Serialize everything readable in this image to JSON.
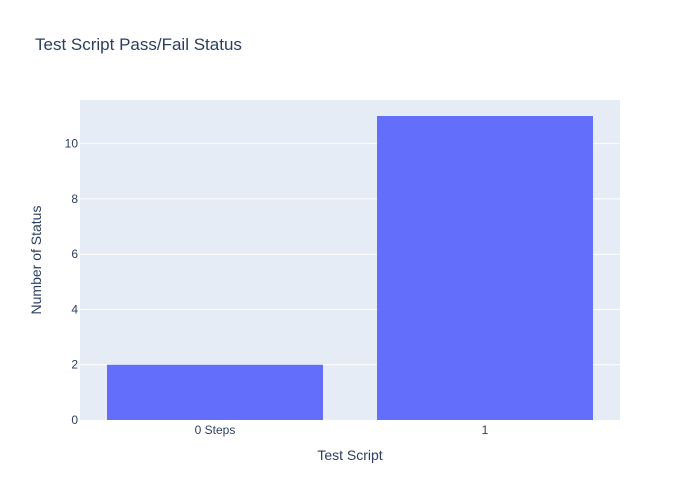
{
  "chart_data": {
    "type": "bar",
    "title": "Test Script Pass/Fail Status",
    "xlabel": "Test Script",
    "ylabel": "Number of Status",
    "categories": [
      "0 Steps",
      "1"
    ],
    "values": [
      2,
      11
    ],
    "ylim": [
      0,
      11.58
    ],
    "yticks": [
      0,
      2,
      4,
      6,
      8,
      10
    ],
    "grid": true,
    "legend": "none",
    "colors": {
      "bar": "#636efa",
      "plot_bg": "#e5ecf6",
      "grid": "#ffffff",
      "text": "#2a3f5f"
    }
  }
}
